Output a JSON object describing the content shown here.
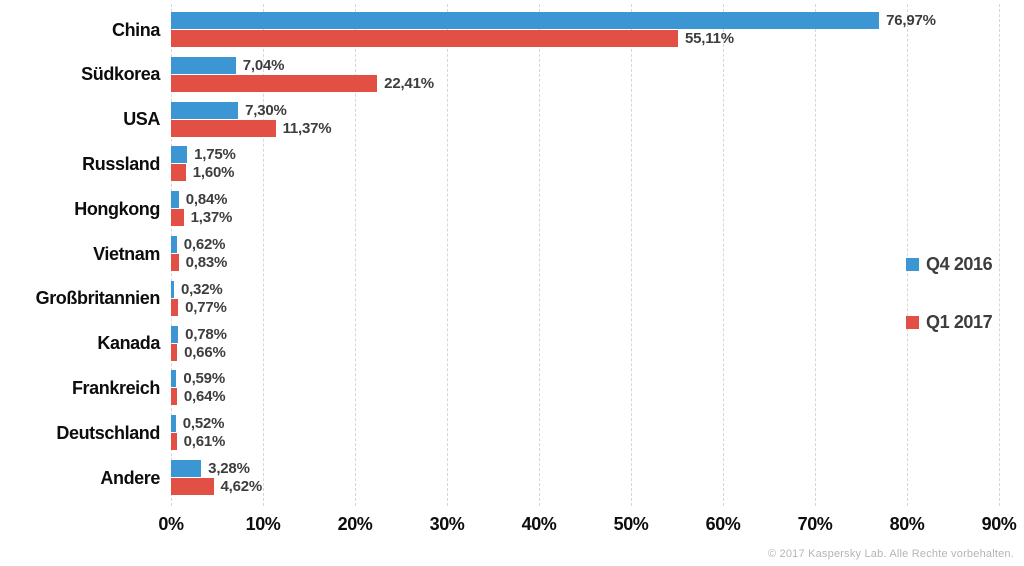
{
  "chart_data": {
    "type": "bar",
    "orientation": "horizontal",
    "title": "",
    "categories": [
      "China",
      "Südkorea",
      "USA",
      "Russland",
      "Hongkong",
      "Vietnam",
      "Großbritannien",
      "Kanada",
      "Frankreich",
      "Deutschland",
      "Andere"
    ],
    "series": [
      {
        "name": "Q4 2016",
        "color": "#3c96d4",
        "values": [
          76.97,
          7.04,
          7.3,
          1.75,
          0.84,
          0.62,
          0.32,
          0.78,
          0.59,
          0.52,
          3.28
        ],
        "labels": [
          "76,97%",
          "7,04%",
          "7,30%",
          "1,75%",
          "0,84%",
          "0,62%",
          "0,32%",
          "0,78%",
          "0,59%",
          "0,52%",
          "3,28%"
        ]
      },
      {
        "name": "Q1 2017",
        "color": "#e25045",
        "values": [
          55.11,
          22.41,
          11.37,
          1.6,
          1.37,
          0.83,
          0.77,
          0.66,
          0.64,
          0.61,
          4.62
        ],
        "labels": [
          "55,11%",
          "22,41%",
          "11,37%",
          "1,60%",
          "1,37%",
          "0,83%",
          "0,77%",
          "0,66%",
          "0,64%",
          "0,61%",
          "4,62%"
        ]
      }
    ],
    "xlabel": "",
    "ylabel": "",
    "xlim": [
      0,
      90
    ],
    "x_ticks": [
      "0%",
      "10%",
      "20%",
      "30%",
      "40%",
      "50%",
      "60%",
      "70%",
      "80%",
      "90%"
    ],
    "grid": "vertical-dashed",
    "legend_position": "right",
    "value_label_format": "german-decimal-comma-percent"
  },
  "footer": {
    "copyright": "© 2017 Kaspersky Lab. Alle Rechte vorbehalten."
  }
}
